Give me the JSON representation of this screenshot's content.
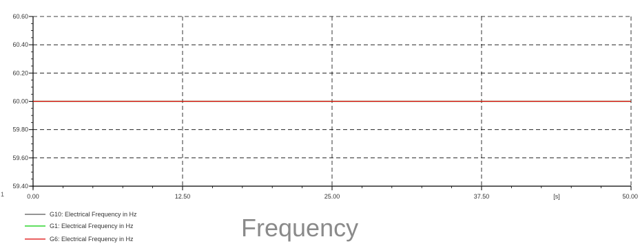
{
  "chart_data": {
    "type": "line",
    "caption": "Frequency",
    "x_unit_label": "[s]",
    "xlim": [
      0,
      50
    ],
    "ylim": [
      59.4,
      60.6
    ],
    "x_ticks": [
      {
        "value": 0,
        "label": "0.00"
      },
      {
        "value": 12.5,
        "label": "12.50"
      },
      {
        "value": 25,
        "label": "25.00"
      },
      {
        "value": 37.5,
        "label": "37.50"
      },
      {
        "value": 50,
        "label": "50.00"
      }
    ],
    "y_ticks": [
      {
        "value": 59.4,
        "label": "59.40"
      },
      {
        "value": 59.6,
        "label": "59.60"
      },
      {
        "value": 59.8,
        "label": "59.80"
      },
      {
        "value": 60.0,
        "label": "60.00"
      },
      {
        "value": 60.2,
        "label": "60.20"
      },
      {
        "value": 60.4,
        "label": "60.40"
      },
      {
        "value": 60.6,
        "label": "60.60"
      }
    ],
    "grid": true,
    "legend_placement": "bottom-left",
    "series": [
      {
        "name": "G10: Electrical Frequency in Hz",
        "color": "#555555",
        "x": [
          0,
          50
        ],
        "y": [
          60.0,
          60.0
        ]
      },
      {
        "name": "G1: Electrical Frequency in Hz",
        "color": "#00cc00",
        "x": [
          0,
          50
        ],
        "y": [
          60.0,
          60.0
        ]
      },
      {
        "name": "G6: Electrical Frequency in Hz",
        "color": "#dd0000",
        "x": [
          0,
          50
        ],
        "y": [
          60.0,
          60.0
        ]
      }
    ]
  }
}
